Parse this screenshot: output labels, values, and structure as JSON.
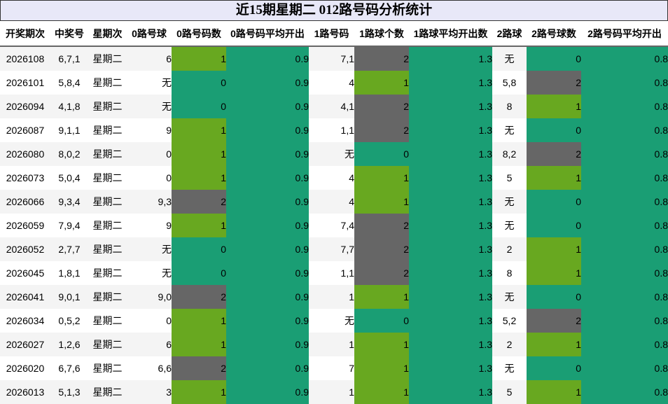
{
  "title": "近15期星期二 012路号码分析统计",
  "headers": [
    "开奖期次",
    "中奖号",
    "星期次",
    "0路号球",
    "0路号码数",
    "0路号码平均开出",
    "1路号码",
    "1路球个数",
    "1路球平均开出数",
    "2路球",
    "2路号球数",
    "2路号码平均开出"
  ],
  "colors": {
    "green": "#68a820",
    "dark": "#666666",
    "teal": "#1a9e74"
  },
  "rows": [
    {
      "period": "2026108",
      "number": "6,7,1",
      "weekday": "星期二",
      "r0": "6",
      "r0_count": "1",
      "r0_avg": "0.9",
      "r1": "7,1",
      "r1_count": "2",
      "r1_avg": "1.3",
      "r2": "无",
      "r2_count": "0",
      "r2_avg": "0.8"
    },
    {
      "period": "2026101",
      "number": "5,8,4",
      "weekday": "星期二",
      "r0": "无",
      "r0_count": "0",
      "r0_avg": "0.9",
      "r1": "4",
      "r1_count": "1",
      "r1_avg": "1.3",
      "r2": "5,8",
      "r2_count": "2",
      "r2_avg": "0.8"
    },
    {
      "period": "2026094",
      "number": "4,1,8",
      "weekday": "星期二",
      "r0": "无",
      "r0_count": "0",
      "r0_avg": "0.9",
      "r1": "4,1",
      "r1_count": "2",
      "r1_avg": "1.3",
      "r2": "8",
      "r2_count": "1",
      "r2_avg": "0.8"
    },
    {
      "period": "2026087",
      "number": "9,1,1",
      "weekday": "星期二",
      "r0": "9",
      "r0_count": "1",
      "r0_avg": "0.9",
      "r1": "1,1",
      "r1_count": "2",
      "r1_avg": "1.3",
      "r2": "无",
      "r2_count": "0",
      "r2_avg": "0.8"
    },
    {
      "period": "2026080",
      "number": "8,0,2",
      "weekday": "星期二",
      "r0": "0",
      "r0_count": "1",
      "r0_avg": "0.9",
      "r1": "无",
      "r1_count": "0",
      "r1_avg": "1.3",
      "r2": "8,2",
      "r2_count": "2",
      "r2_avg": "0.8"
    },
    {
      "period": "2026073",
      "number": "5,0,4",
      "weekday": "星期二",
      "r0": "0",
      "r0_count": "1",
      "r0_avg": "0.9",
      "r1": "4",
      "r1_count": "1",
      "r1_avg": "1.3",
      "r2": "5",
      "r2_count": "1",
      "r2_avg": "0.8"
    },
    {
      "period": "2026066",
      "number": "9,3,4",
      "weekday": "星期二",
      "r0": "9,3",
      "r0_count": "2",
      "r0_avg": "0.9",
      "r1": "4",
      "r1_count": "1",
      "r1_avg": "1.3",
      "r2": "无",
      "r2_count": "0",
      "r2_avg": "0.8"
    },
    {
      "period": "2026059",
      "number": "7,9,4",
      "weekday": "星期二",
      "r0": "9",
      "r0_count": "1",
      "r0_avg": "0.9",
      "r1": "7,4",
      "r1_count": "2",
      "r1_avg": "1.3",
      "r2": "无",
      "r2_count": "0",
      "r2_avg": "0.8"
    },
    {
      "period": "2026052",
      "number": "2,7,7",
      "weekday": "星期二",
      "r0": "无",
      "r0_count": "0",
      "r0_avg": "0.9",
      "r1": "7,7",
      "r1_count": "2",
      "r1_avg": "1.3",
      "r2": "2",
      "r2_count": "1",
      "r2_avg": "0.8"
    },
    {
      "period": "2026045",
      "number": "1,8,1",
      "weekday": "星期二",
      "r0": "无",
      "r0_count": "0",
      "r0_avg": "0.9",
      "r1": "1,1",
      "r1_count": "2",
      "r1_avg": "1.3",
      "r2": "8",
      "r2_count": "1",
      "r2_avg": "0.8"
    },
    {
      "period": "2026041",
      "number": "9,0,1",
      "weekday": "星期二",
      "r0": "9,0",
      "r0_count": "2",
      "r0_avg": "0.9",
      "r1": "1",
      "r1_count": "1",
      "r1_avg": "1.3",
      "r2": "无",
      "r2_count": "0",
      "r2_avg": "0.8"
    },
    {
      "period": "2026034",
      "number": "0,5,2",
      "weekday": "星期二",
      "r0": "0",
      "r0_count": "1",
      "r0_avg": "0.9",
      "r1": "无",
      "r1_count": "0",
      "r1_avg": "1.3",
      "r2": "5,2",
      "r2_count": "2",
      "r2_avg": "0.8"
    },
    {
      "period": "2026027",
      "number": "1,2,6",
      "weekday": "星期二",
      "r0": "6",
      "r0_count": "1",
      "r0_avg": "0.9",
      "r1": "1",
      "r1_count": "1",
      "r1_avg": "1.3",
      "r2": "2",
      "r2_count": "1",
      "r2_avg": "0.8"
    },
    {
      "period": "2026020",
      "number": "6,7,6",
      "weekday": "星期二",
      "r0": "6,6",
      "r0_count": "2",
      "r0_avg": "0.9",
      "r1": "7",
      "r1_count": "1",
      "r1_avg": "1.3",
      "r2": "无",
      "r2_count": "0",
      "r2_avg": "0.8"
    },
    {
      "period": "2026013",
      "number": "5,1,3",
      "weekday": "星期二",
      "r0": "3",
      "r0_count": "1",
      "r0_avg": "0.9",
      "r1": "1",
      "r1_count": "1",
      "r1_avg": "1.3",
      "r2": "5",
      "r2_count": "1",
      "r2_avg": "0.8"
    }
  ]
}
